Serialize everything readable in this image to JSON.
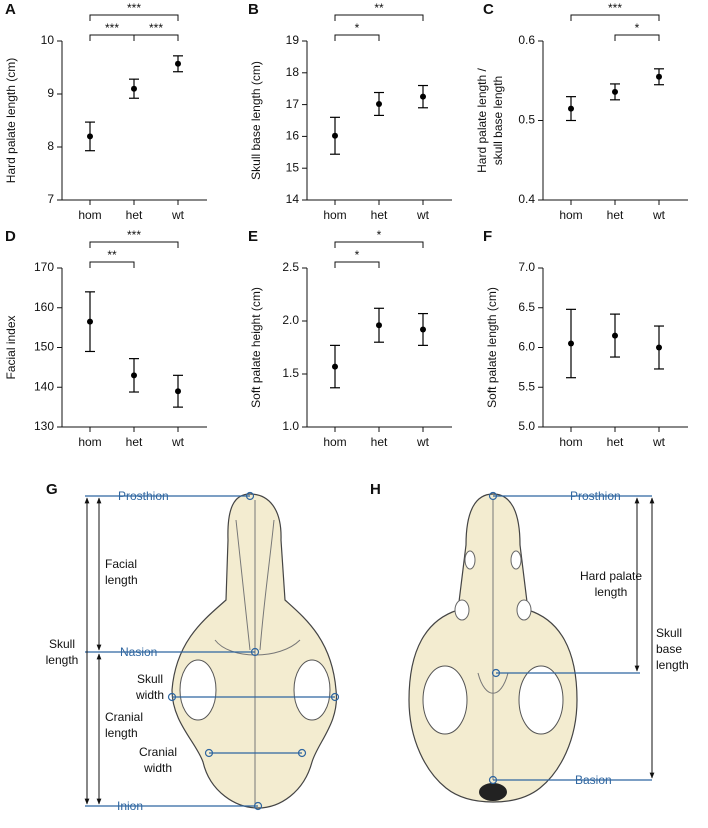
{
  "chart_data": [
    {
      "type": "errorbar",
      "panel": "A",
      "ylabel": "Hard palate length (cm)",
      "categories": [
        "hom",
        "het",
        "wt"
      ],
      "values": [
        8.2,
        9.1,
        9.57
      ],
      "errors": [
        0.27,
        0.18,
        0.15
      ],
      "color": "#000000",
      "ylim": [
        7,
        10
      ],
      "yticks": [
        7,
        8,
        9,
        10
      ],
      "comparisons": [
        {
          "between": [
            "hom",
            "het"
          ],
          "label": "***"
        },
        {
          "between": [
            "het",
            "wt"
          ],
          "label": "***"
        },
        {
          "between": [
            "hom",
            "wt"
          ],
          "label": "***"
        }
      ]
    },
    {
      "type": "errorbar",
      "panel": "B",
      "ylabel": "Skull base length (cm)",
      "categories": [
        "hom",
        "het",
        "wt"
      ],
      "values": [
        16.02,
        17.02,
        17.25
      ],
      "errors": [
        0.58,
        0.36,
        0.35
      ],
      "color": "#000000",
      "ylim": [
        14,
        19
      ],
      "yticks": [
        14,
        15,
        16,
        17,
        18,
        19
      ],
      "comparisons": [
        {
          "between": [
            "hom",
            "het"
          ],
          "label": "*"
        },
        {
          "between": [
            "hom",
            "wt"
          ],
          "label": "**"
        }
      ]
    },
    {
      "type": "errorbar",
      "panel": "C",
      "ylabel": [
        "Hard palate length /",
        "skull base length"
      ],
      "categories": [
        "hom",
        "het",
        "wt"
      ],
      "values": [
        0.515,
        0.536,
        0.555
      ],
      "errors": [
        0.015,
        0.01,
        0.01
      ],
      "color": "#000000",
      "ylim": [
        0.4,
        0.6
      ],
      "yticks": [
        0.4,
        0.5,
        0.6
      ],
      "comparisons": [
        {
          "between": [
            "het",
            "wt"
          ],
          "label": "*"
        },
        {
          "between": [
            "hom",
            "wt"
          ],
          "label": "***"
        }
      ]
    },
    {
      "type": "errorbar",
      "panel": "D",
      "ylabel": "Facial index",
      "categories": [
        "hom",
        "het",
        "wt"
      ],
      "values": [
        156.5,
        143,
        139
      ],
      "errors": [
        7.5,
        4.2,
        4
      ],
      "color": "#000000",
      "ylim": [
        130,
        170
      ],
      "yticks": [
        130,
        140,
        150,
        160,
        170
      ],
      "comparisons": [
        {
          "between": [
            "hom",
            "het"
          ],
          "label": "**"
        },
        {
          "between": [
            "hom",
            "wt"
          ],
          "label": "***"
        }
      ]
    },
    {
      "type": "errorbar",
      "panel": "E",
      "ylabel": "Soft palate height (cm)",
      "categories": [
        "hom",
        "het",
        "wt"
      ],
      "values": [
        1.57,
        1.96,
        1.92
      ],
      "errors": [
        0.2,
        0.16,
        0.15
      ],
      "color": "#000000",
      "ylim": [
        1,
        2.5
      ],
      "yticks": [
        {
          "value": 1,
          "label": "1.0"
        },
        1.5,
        {
          "value": 2,
          "label": "2.0"
        },
        2.5
      ],
      "comparisons": [
        {
          "between": [
            "hom",
            "het"
          ],
          "label": "*"
        },
        {
          "between": [
            "hom",
            "wt"
          ],
          "label": "*"
        }
      ]
    },
    {
      "type": "errorbar",
      "panel": "F",
      "ylabel": "Soft palate length (cm)",
      "categories": [
        "hom",
        "het",
        "wt"
      ],
      "values": [
        6.05,
        6.15,
        6.0
      ],
      "errors": [
        0.43,
        0.27,
        0.27
      ],
      "color": "#000000",
      "ylim": [
        5,
        7
      ],
      "yticks": [
        {
          "value": 5,
          "label": "5.0"
        },
        5.5,
        {
          "value": 6,
          "label": "6.0"
        },
        6.5,
        {
          "value": 7,
          "label": "7.0"
        }
      ],
      "comparisons": []
    }
  ],
  "diagrams": [
    {
      "panel": "G",
      "prosthion": "Prosthion",
      "nasion": "Nasion",
      "inion": "Inion",
      "facial_length": [
        "Facial",
        "length"
      ],
      "skull_length": [
        "Skull",
        "length"
      ],
      "skull_width": [
        "Skull",
        "width"
      ],
      "cranial_length": [
        "Cranial",
        "length"
      ],
      "cranial_width": [
        "Cranial",
        "width"
      ]
    },
    {
      "panel": "H",
      "prosthion": "Prosthion",
      "basion": "Basion",
      "hard_palate_length": [
        "Hard palate",
        "length"
      ],
      "skull_base_length": [
        "Skull",
        "base",
        "length"
      ]
    }
  ]
}
